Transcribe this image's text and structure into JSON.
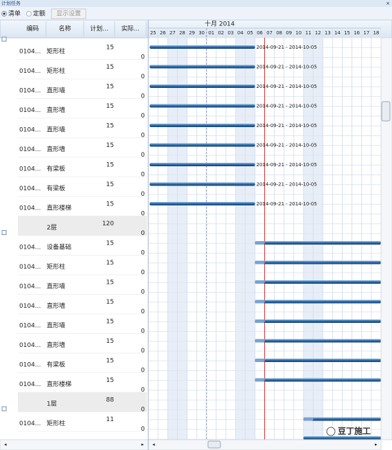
{
  "window": {
    "title": "计划任务",
    "close": "×"
  },
  "toolbar": {
    "options": [
      "清单",
      "定额"
    ],
    "button": "显示设置"
  },
  "table": {
    "columns": [
      "编码",
      "名称",
      "计划...",
      "实际..."
    ],
    "rows": [
      {
        "code": "0104...",
        "name": "矩形柱",
        "plan": 15,
        "actual": 0,
        "bar_label": "2014-09-21 - 2014-10-05"
      },
      {
        "code": "0104...",
        "name": "矩形柱",
        "plan": 15,
        "actual": 0,
        "bar_label": "2014-09-21 - 2014-10-05"
      },
      {
        "code": "0104...",
        "name": "直形墙",
        "plan": 15,
        "actual": 0,
        "bar_label": "2014-09-21 - 2014-10-05"
      },
      {
        "code": "0104...",
        "name": "直形墙",
        "plan": 15,
        "actual": 0,
        "bar_label": "2014-09-21 - 2014-10-05"
      },
      {
        "code": "0104...",
        "name": "直形墙",
        "plan": 15,
        "actual": 0,
        "bar_label": "2014-09-21 - 2014-10-05"
      },
      {
        "code": "0104...",
        "name": "直形墙",
        "plan": 15,
        "actual": 0,
        "bar_label": "2014-09-21 - 2014-10-05"
      },
      {
        "code": "0104...",
        "name": "有梁板",
        "plan": 15,
        "actual": 0,
        "bar_label": "2014-09-21 - 2014-10-05"
      },
      {
        "code": "0104...",
        "name": "有梁板",
        "plan": 15,
        "actual": 0,
        "bar_label": "2014-09-21 - 2014-10-05"
      },
      {
        "code": "0104...",
        "name": "直形楼梯",
        "plan": 15,
        "actual": 0,
        "bar_label": "2014-09-21 - 2014-10-05"
      },
      {
        "name": "2层",
        "plan": 120,
        "actual": 0
      },
      {
        "code": "0104...",
        "name": "设备基础",
        "plan": 15,
        "actual": 0
      },
      {
        "code": "0104...",
        "name": "矩形柱",
        "plan": 15,
        "actual": 0
      },
      {
        "code": "0104...",
        "name": "直形墙",
        "plan": 15,
        "actual": 0
      },
      {
        "code": "0104...",
        "name": "直形墙",
        "plan": 15,
        "actual": 0
      },
      {
        "code": "0104...",
        "name": "直形墙",
        "plan": 15,
        "actual": 0
      },
      {
        "code": "0104...",
        "name": "直形墙",
        "plan": 15,
        "actual": 0
      },
      {
        "code": "0104...",
        "name": "有梁板",
        "plan": 15,
        "actual": 0
      },
      {
        "code": "0104...",
        "name": "直形楼梯",
        "plan": 15,
        "actual": 0
      },
      {
        "name": "1层",
        "plan": 88,
        "actual": 0
      },
      {
        "code": "0104...",
        "name": "矩形柱",
        "plan": 11,
        "actual": 0
      }
    ]
  },
  "gantt": {
    "month": "十月 2014",
    "days": [
      "25",
      "26",
      "27",
      "28",
      "29",
      "30",
      "01",
      "02",
      "03",
      "04",
      "05",
      "06",
      "07",
      "08",
      "09",
      "10",
      "11",
      "12",
      "13",
      "14",
      "15",
      "16",
      "17",
      "18"
    ]
  },
  "watermark": "豆丁施工"
}
